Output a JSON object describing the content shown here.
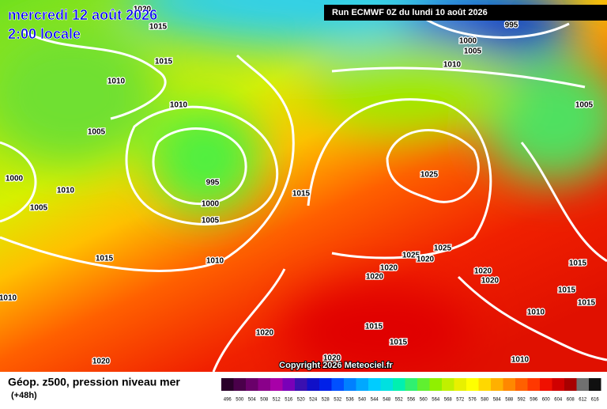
{
  "header": {
    "date": "mercredi 12 août 2026",
    "time": "2:00 locale",
    "run": "Run ECMWF 0Z du lundi 10 août 2026"
  },
  "isobar_labels": [
    1020,
    1015,
    1015,
    1010,
    1010,
    1005,
    1000,
    1010,
    1005,
    995,
    1000,
    1005,
    1015,
    1015,
    1010,
    1010,
    1020,
    1020,
    1020,
    1015,
    1015,
    1020,
    1020,
    1025,
    1020,
    1025,
    1025,
    1020,
    1020,
    1015,
    1015,
    1015,
    1010,
    1010,
    1010,
    1005,
    995,
    1000,
    1005
  ],
  "copyright": "Copyright 2026 Meteociel.fr",
  "legend": {
    "title": "Géop. z500, pression niveau mer",
    "lead": "(+48h)"
  },
  "scale": {
    "values": [
      496,
      500,
      504,
      508,
      512,
      516,
      520,
      524,
      528,
      532,
      536,
      540,
      544,
      548,
      552,
      556,
      560,
      564,
      568,
      572,
      576,
      580,
      584,
      588,
      592,
      596,
      600,
      604,
      608,
      612,
      616
    ],
    "colors": [
      "#2a002a",
      "#4a004a",
      "#6a006a",
      "#8a008a",
      "#a800a8",
      "#7a00b8",
      "#3a10b0",
      "#1010c8",
      "#0020e8",
      "#0050ff",
      "#0080ff",
      "#00a8ff",
      "#00ccff",
      "#00e0e0",
      "#00f0b0",
      "#30f070",
      "#60f030",
      "#90f000",
      "#c0f000",
      "#e8f000",
      "#ffff00",
      "#ffd800",
      "#ffb000",
      "#ff8800",
      "#ff6000",
      "#ff3800",
      "#f01000",
      "#d00000",
      "#a80000",
      "#707070",
      "#101010"
    ]
  }
}
